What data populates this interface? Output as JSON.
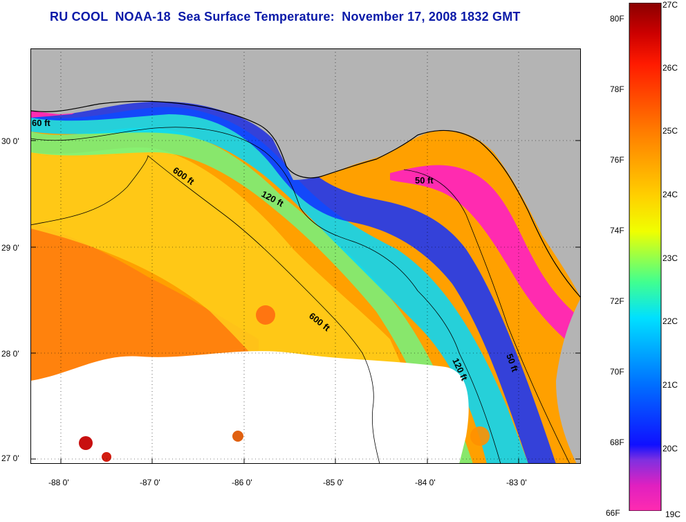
{
  "title": "RU COOL  NOAA-18  Sea Surface Temperature:  November 17, 2008 1832 GMT",
  "map": {
    "longitude_labels": [
      "-88 0'",
      "-87 0'",
      "-86 0'",
      "-85 0'",
      "-84 0'",
      "-83 0'"
    ],
    "latitude_labels": [
      "30 0'",
      "29 0'",
      "28 0'",
      "27 0'"
    ],
    "contours": [
      {
        "label": "60 ft"
      },
      {
        "label": "600 ft"
      },
      {
        "label": "120 ft"
      },
      {
        "label": "50 ft"
      },
      {
        "label": "600 ft"
      },
      {
        "label": "120 ft"
      },
      {
        "label": "50 ft"
      }
    ],
    "colors": {
      "land": "#b4b4b4",
      "cloud": "#ffffff",
      "title": "#0a1aa8"
    }
  },
  "colorbar": {
    "fahrenheit_labels": [
      "80F",
      "78F",
      "76F",
      "74F",
      "72F",
      "70F",
      "68F",
      "66F"
    ],
    "celsius_labels": [
      "27C",
      "26C",
      "25C",
      "24C",
      "23C",
      "22C",
      "21C",
      "20C",
      "19C"
    ]
  }
}
